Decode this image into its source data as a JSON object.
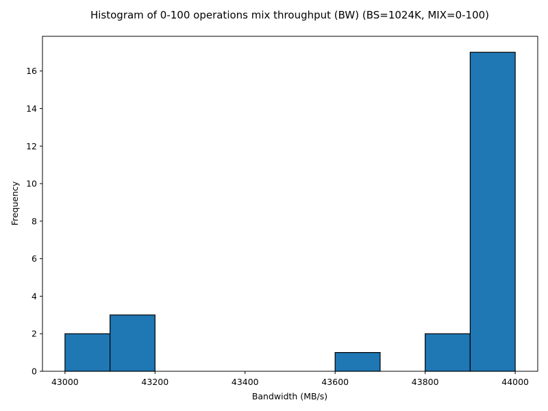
{
  "chart_data": {
    "type": "bar",
    "title": "Histogram of 0-100 operations mix throughput (BW) (BS=1024K, MIX=0-100)",
    "xlabel": "Bandwidth (MB/s)",
    "ylabel": "Frequency",
    "bins": [
      {
        "start": 43000,
        "end": 43100,
        "count": 2
      },
      {
        "start": 43100,
        "end": 43200,
        "count": 3
      },
      {
        "start": 43200,
        "end": 43300,
        "count": 0
      },
      {
        "start": 43300,
        "end": 43400,
        "count": 0
      },
      {
        "start": 43400,
        "end": 43500,
        "count": 0
      },
      {
        "start": 43500,
        "end": 43600,
        "count": 0
      },
      {
        "start": 43600,
        "end": 43700,
        "count": 1
      },
      {
        "start": 43700,
        "end": 43800,
        "count": 0
      },
      {
        "start": 43800,
        "end": 43900,
        "count": 2
      },
      {
        "start": 43900,
        "end": 44000,
        "count": 17
      }
    ],
    "xlim": [
      42950,
      44050
    ],
    "ylim": [
      0,
      17.85
    ],
    "xticks": [
      43000,
      43200,
      43400,
      43600,
      43800,
      44000
    ],
    "yticks": [
      0,
      2,
      4,
      6,
      8,
      10,
      12,
      14,
      16
    ],
    "grid": false,
    "bar_color": "#1f77b4",
    "edge_color": "#000000"
  }
}
